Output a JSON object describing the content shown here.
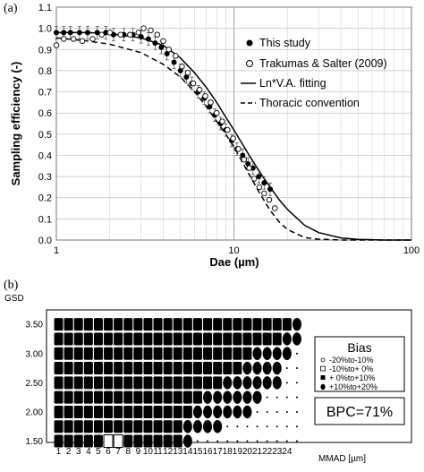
{
  "chart_data": [
    {
      "panel_label": "(a)",
      "type": "scatter",
      "xlabel": "Dae (µm)",
      "ylabel": "Sampling efficiency (-)",
      "xscale": "log",
      "xlim": [
        1,
        100
      ],
      "ylim": [
        0,
        1.1
      ],
      "x_ticks": [
        "1",
        "10",
        "100"
      ],
      "y_ticks": [
        "0.0",
        "0.1",
        "0.2",
        "0.3",
        "0.4",
        "0.5",
        "0.6",
        "0.7",
        "0.8",
        "0.9",
        "1.0",
        "1.1"
      ],
      "grid": true,
      "legend_position": "top-right",
      "series": [
        {
          "name": "This study",
          "marker": "filled-circle",
          "x": [
            1.0,
            1.1,
            1.2,
            1.35,
            1.5,
            1.7,
            1.9,
            2.1,
            2.4,
            2.7,
            3.0,
            3.3,
            3.6,
            3.9,
            4.2,
            4.6,
            5.0,
            5.4,
            5.8,
            6.3,
            6.8,
            7.3,
            7.8,
            8.4,
            9.0,
            9.7,
            10.4,
            11.2,
            12.0,
            12.8,
            13.8,
            14.8,
            16.0
          ],
          "y": [
            0.98,
            0.98,
            0.98,
            0.98,
            0.98,
            0.98,
            0.98,
            0.97,
            0.97,
            0.97,
            0.96,
            0.95,
            0.93,
            0.91,
            0.88,
            0.84,
            0.8,
            0.77,
            0.74,
            0.7,
            0.67,
            0.63,
            0.59,
            0.55,
            0.52,
            0.47,
            0.43,
            0.4,
            0.36,
            0.34,
            0.3,
            0.27,
            0.24
          ]
        },
        {
          "name": "Trakumas & Salter (2009)",
          "marker": "open-circle",
          "x": [
            1.0,
            1.1,
            1.25,
            1.4,
            1.6,
            1.8,
            2.0,
            2.3,
            2.6,
            2.9,
            3.1,
            3.4,
            3.7,
            4.0,
            4.3,
            4.7,
            5.1,
            5.5,
            5.9,
            6.4,
            6.9,
            7.4,
            8.0,
            8.6,
            9.2,
            9.9,
            10.6,
            11.4,
            12.2,
            13.0,
            13.9,
            14.8,
            15.8,
            17.0
          ],
          "y": [
            0.92,
            0.95,
            0.95,
            0.94,
            0.95,
            0.97,
            0.98,
            0.97,
            0.97,
            0.98,
            1.0,
            0.99,
            0.97,
            0.94,
            0.9,
            0.87,
            0.82,
            0.79,
            0.74,
            0.71,
            0.68,
            0.65,
            0.6,
            0.56,
            0.52,
            0.48,
            0.43,
            0.38,
            0.34,
            0.29,
            0.25,
            0.22,
            0.19,
            0.15
          ]
        },
        {
          "name": "Ln*V.A. fitting",
          "style": "solid",
          "x": [
            1,
            1.5,
            2,
            3,
            4,
            5,
            6,
            7,
            8,
            9,
            10,
            12,
            14,
            16,
            18,
            20,
            25,
            30,
            40,
            50,
            70,
            100
          ],
          "y": [
            0.98,
            0.98,
            0.975,
            0.955,
            0.92,
            0.86,
            0.79,
            0.72,
            0.65,
            0.58,
            0.52,
            0.41,
            0.32,
            0.25,
            0.19,
            0.145,
            0.07,
            0.035,
            0.01,
            0.003,
            0.0,
            0.0
          ]
        },
        {
          "name": "Thoracic convention",
          "style": "dashed",
          "x": [
            1,
            1.5,
            2,
            3,
            4,
            5,
            6,
            7,
            8,
            9,
            10,
            12,
            14,
            16,
            18,
            20,
            25,
            30,
            40,
            50,
            70,
            100
          ],
          "y": [
            0.955,
            0.94,
            0.925,
            0.885,
            0.83,
            0.77,
            0.7,
            0.63,
            0.56,
            0.5,
            0.44,
            0.32,
            0.22,
            0.14,
            0.085,
            0.05,
            0.012,
            0.004,
            0.0,
            0.0,
            0.0,
            0.0
          ]
        }
      ]
    },
    {
      "panel_label": "(b)",
      "type": "heatmap",
      "ylabel": "GSD",
      "xlabel": "MMAD [µm]",
      "x_ticks": [
        "1",
        "2",
        "3",
        "4",
        "5",
        "6",
        "7",
        "8",
        "9",
        "10",
        "11",
        "12",
        "13",
        "14",
        "15",
        "16",
        "17",
        "18",
        "19",
        "20",
        "21",
        "22",
        "23",
        "24"
      ],
      "y_ticks": [
        "3.50",
        "3.00",
        "2.50",
        "2.00",
        "1.50"
      ],
      "legend": {
        "title": "Bias",
        "entries": [
          {
            "label": "-20%to-10%",
            "marker": "dot"
          },
          {
            "label": "-10%to+ 0%",
            "marker": "open-square"
          },
          {
            "label": "+ 0%to+10%",
            "marker": "filled-square"
          },
          {
            "label": "+10%to+20%",
            "marker": "filled-ellipse"
          }
        ]
      },
      "summary": "BPC=71%",
      "gsd_rows": [
        3.5,
        3.25,
        3.0,
        2.75,
        2.5,
        2.25,
        2.0,
        1.75,
        1.5
      ],
      "mmad_cols": [
        1,
        2,
        3,
        4,
        5,
        6,
        7,
        8,
        9,
        10,
        11,
        12,
        13,
        14,
        15,
        16,
        17,
        18,
        19,
        20,
        21,
        22,
        23,
        24,
        25
      ],
      "grid_codes": [
        "SSSSSSSSSSSSSSSSSSSSSSSSE",
        "SSSSSSSSSSSSSSSSSSSSSSSEE",
        "SSSSSSSSSSSSSSSSSSSSEEEE.",
        "SSSSSSSSSSSSSSSSSSSEEEE..",
        "SSSSSSSSSSSSSSSSSEEEEEE..",
        "SSSSSSSSSSSSSSSEEEEEE....",
        "SSSSSSSSSSSSSSEEEEEE.....",
        "SSSSSSSSSSSSSEEEE........",
        "SSSSSOOSSSSSSE..........."
      ],
      "code_meaning": {
        ".": "-20%to-10%",
        "O": "-10%to+ 0%",
        "S": "+ 0%to+10%",
        "E": "+10%to+20%"
      }
    }
  ]
}
